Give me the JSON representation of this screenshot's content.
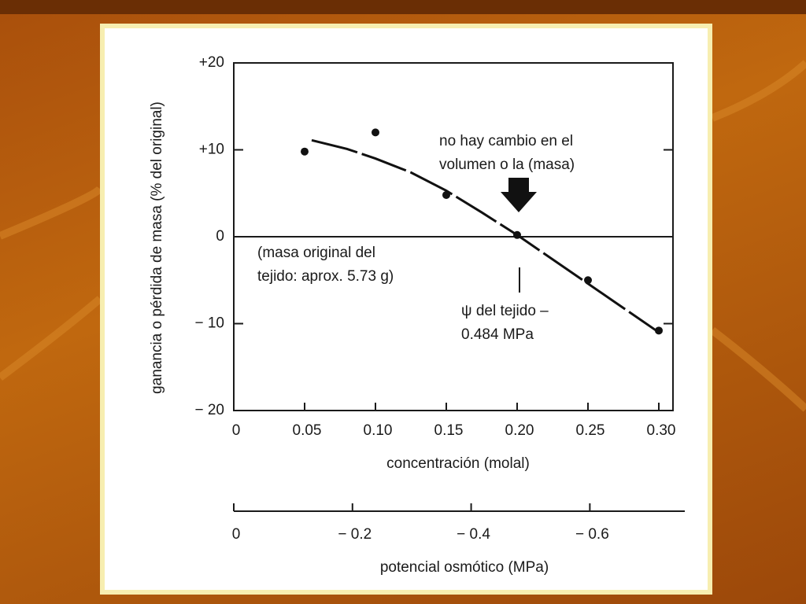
{
  "chart_data": {
    "type": "scatter",
    "x": [
      0.05,
      0.1,
      0.15,
      0.2,
      0.25,
      0.3
    ],
    "values": [
      9.8,
      12,
      4.8,
      0.2,
      -5,
      -10.8
    ],
    "color": "#111111",
    "curve": {
      "x": [
        0.055,
        0.08,
        0.1,
        0.125,
        0.15,
        0.175,
        0.2,
        0.225,
        0.25,
        0.275,
        0.3
      ],
      "values": [
        11.1,
        10.1,
        9,
        7.4,
        5.3,
        2.8,
        0.2,
        -2.6,
        -5.4,
        -8.2,
        -11
      ]
    },
    "xlim": [
      0,
      0.31
    ],
    "ylim": [
      -20,
      20
    ],
    "xticks": [
      0,
      0.05,
      {
        "value": 0.1,
        "label": "0.10"
      },
      0.15,
      {
        "value": 0.2,
        "label": "0.20"
      },
      0.25,
      {
        "value": 0.3,
        "label": "0.30"
      }
    ],
    "yticks": [
      {
        "value": -20,
        "label": "− 20"
      },
      {
        "value": -10,
        "label": "− 10"
      },
      0,
      {
        "value": 10,
        "label": "+10"
      },
      {
        "value": 20,
        "label": "+20"
      }
    ],
    "x2lim": [
      0,
      -0.76
    ],
    "x2ticks": [
      0,
      {
        "value": -0.2,
        "label": "− 0.2"
      },
      {
        "value": -0.4,
        "label": "− 0.4"
      },
      {
        "value": -0.6,
        "label": "− 0.6"
      }
    ],
    "x_label": "concentración (molal)",
    "x2_label": "potencial osmótico (MPa)",
    "y_label": "ganancia o pérdida de masa (% del original)",
    "annotations": {
      "no_change": [
        "no hay cambio en el",
        "volumen o la (masa)"
      ],
      "original_mass": [
        "(masa original del",
        "tejido: aprox. 5.73 g)"
      ],
      "tissue_potential": [
        "ψ del tejido –",
        "0.484 MPa"
      ]
    }
  }
}
